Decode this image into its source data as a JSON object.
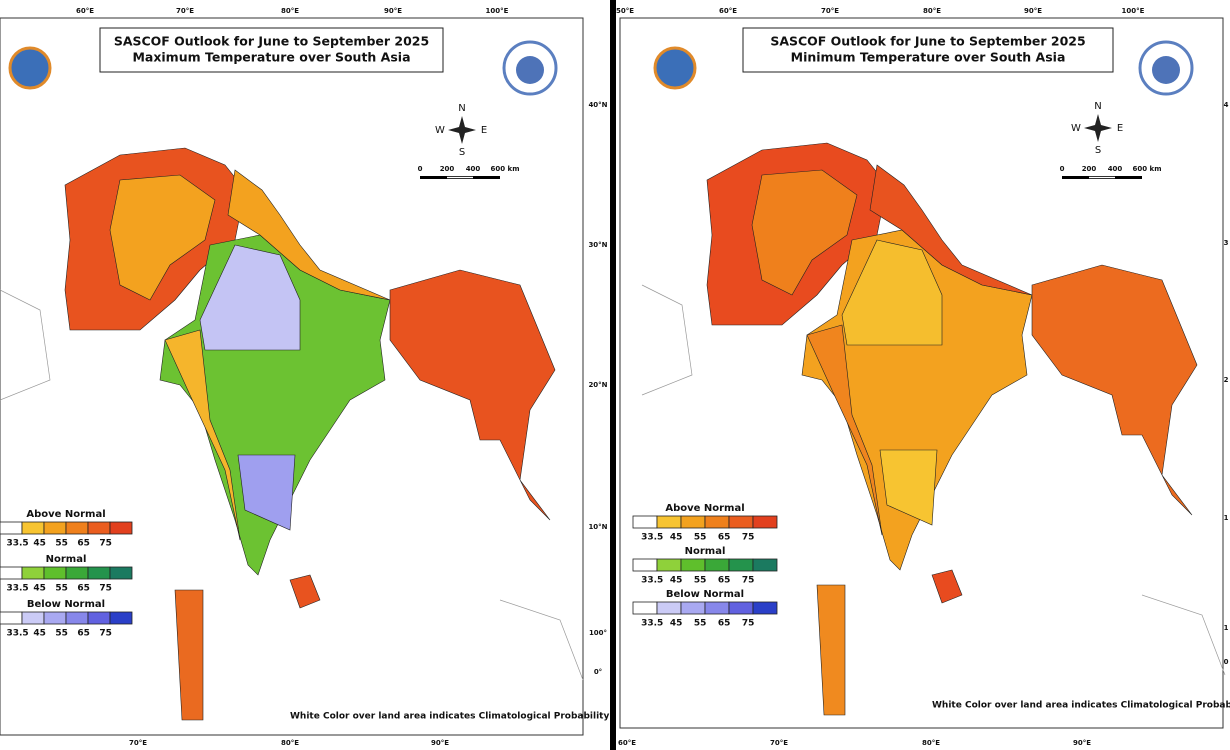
{
  "panels": [
    {
      "title": "SASCOF Outlook for June to September 2025",
      "subtitle": "Maximum Temperature over South Asia",
      "top_lon_labels": [
        "60°E",
        "70°E",
        "80°E",
        "90°E",
        "100°E"
      ],
      "bottom_lon_labels": [
        "70°E",
        "80°E",
        "90°E"
      ],
      "lat_labels": [
        "40°N",
        "30°N",
        "20°N",
        "10°N",
        "100°",
        "0°"
      ],
      "compass": [
        "N",
        "E",
        "S",
        "W"
      ],
      "scale_labels": [
        "0",
        "200",
        "400",
        "600 km"
      ],
      "legend": [
        {
          "name": "Above Normal",
          "labels": [
            "33.5",
            "45",
            "55",
            "65",
            "75"
          ],
          "colors": [
            "#ffffff",
            "#f7c431",
            "#f3a21f",
            "#ef801c",
            "#ea5d1f",
            "#e2401e"
          ]
        },
        {
          "name": "Normal",
          "labels": [
            "33.5",
            "45",
            "55",
            "65",
            "75"
          ],
          "colors": [
            "#ffffff",
            "#8fd13a",
            "#5fbf2c",
            "#3aa838",
            "#24934c",
            "#1b7a60"
          ]
        },
        {
          "name": "Below Normal",
          "labels": [
            "33.5",
            "45",
            "55",
            "65",
            "75"
          ],
          "colors": [
            "#ffffff",
            "#cbcbf6",
            "#a9a9f1",
            "#8787ea",
            "#6161e0",
            "#2a3fc8"
          ]
        }
      ],
      "footnote": "White Color over land area indicates Climatological Probability"
    },
    {
      "title": "SASCOF Outlook for June to September 2025",
      "subtitle": "Minimum Temperature over South Asia",
      "top_lon_labels": [
        "50°E",
        "60°E",
        "70°E",
        "80°E",
        "90°E",
        "100°E"
      ],
      "bottom_lon_labels": [
        "60°E",
        "70°E",
        "80°E",
        "90°E"
      ],
      "lat_labels": [
        "4",
        "3",
        "2",
        "1",
        "1",
        "0"
      ],
      "compass": [
        "N",
        "E",
        "S",
        "W"
      ],
      "scale_labels": [
        "0",
        "200",
        "400",
        "600 km"
      ],
      "legend": [
        {
          "name": "Above Normal",
          "labels": [
            "33.5",
            "45",
            "55",
            "65",
            "75"
          ],
          "colors": [
            "#ffffff",
            "#f7c431",
            "#f3a21f",
            "#ef801c",
            "#ea5d1f",
            "#e2401e"
          ]
        },
        {
          "name": "Normal",
          "labels": [
            "33.5",
            "45",
            "55",
            "65",
            "75"
          ],
          "colors": [
            "#ffffff",
            "#8fd13a",
            "#5fbf2c",
            "#3aa838",
            "#24934c",
            "#1b7a60"
          ]
        },
        {
          "name": "Below Normal",
          "labels": [
            "33.5",
            "45",
            "55",
            "65",
            "75"
          ],
          "colors": [
            "#ffffff",
            "#cbcbf6",
            "#a9a9f1",
            "#8787ea",
            "#6161e0",
            "#2a3fc8"
          ]
        }
      ],
      "footnote": "White Color over land area indicates Climatological Probability"
    }
  ]
}
